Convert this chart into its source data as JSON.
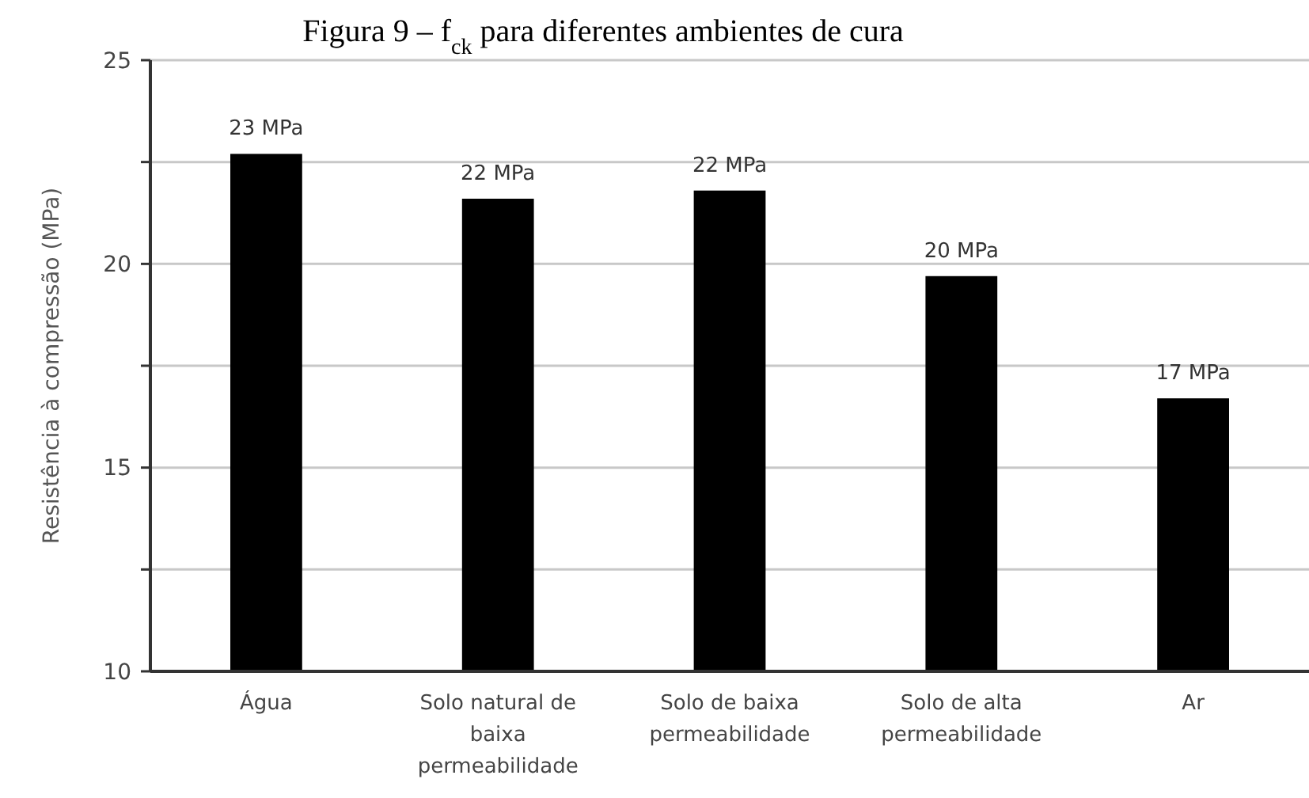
{
  "chart_data": {
    "type": "bar",
    "title": "Figura 9 – f$_{ck}$ para diferentes ambientes de cura",
    "ylabel": "Resistência à compressão (MPa)",
    "categories": [
      "Água",
      "Solo natural de baixa permeabilidade",
      "Solo de baixa permeabilidade",
      "Solo de alta permeabilidade",
      "Ar"
    ],
    "values": [
      22.7,
      21.6,
      21.8,
      19.7,
      16.7
    ],
    "value_labels": [
      "23 MPa",
      "22 MPa",
      "22 MPa",
      "20 MPa",
      "17 MPa"
    ],
    "color": "#000000",
    "ylim": [
      10,
      25
    ],
    "yticks": [
      10,
      {
        "value": 12.5,
        "label": null
      },
      15,
      {
        "value": 17.5,
        "label": null
      },
      20,
      {
        "value": 22.5,
        "label": null
      },
      25
    ],
    "grid": "y"
  }
}
